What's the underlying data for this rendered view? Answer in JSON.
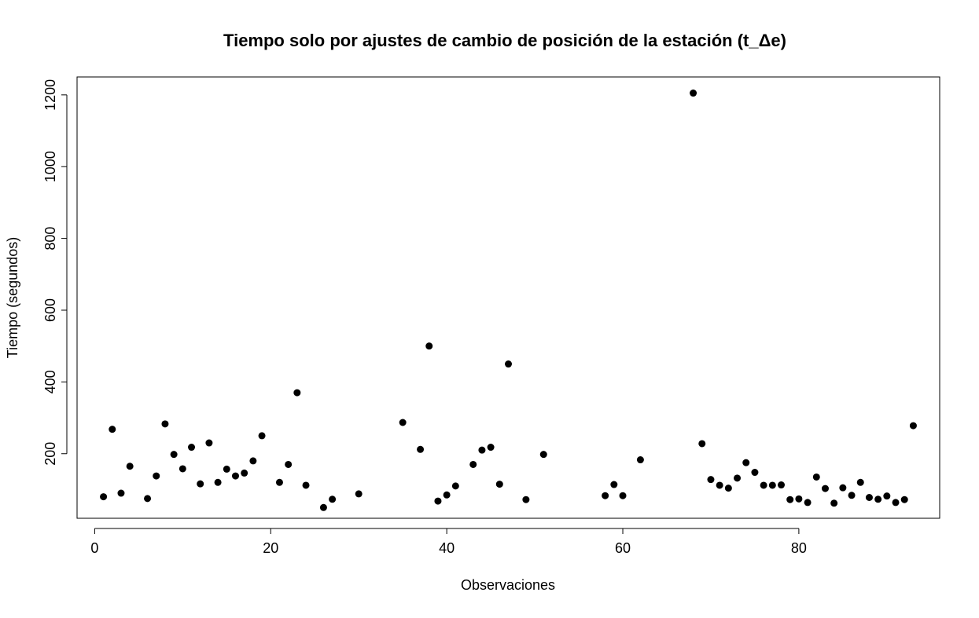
{
  "chart_data": {
    "type": "scatter",
    "title": "Tiempo solo por ajustes de cambio de posición de la estación (t_Δe)",
    "xlabel": "Observaciones",
    "ylabel": "Tiempo (segundos)",
    "xlim": [
      -2,
      96
    ],
    "ylim": [
      20,
      1250
    ],
    "x_ticks": [
      0,
      20,
      40,
      60,
      80
    ],
    "y_ticks": [
      200,
      400,
      600,
      800,
      1000,
      1200
    ],
    "grid": false,
    "marker_color": "#000000",
    "points": [
      [
        1,
        80
      ],
      [
        2,
        268
      ],
      [
        3,
        90
      ],
      [
        4,
        165
      ],
      [
        6,
        75
      ],
      [
        7,
        138
      ],
      [
        8,
        283
      ],
      [
        9,
        198
      ],
      [
        10,
        158
      ],
      [
        11,
        218
      ],
      [
        12,
        116
      ],
      [
        13,
        230
      ],
      [
        14,
        120
      ],
      [
        15,
        157
      ],
      [
        16,
        138
      ],
      [
        17,
        146
      ],
      [
        18,
        180
      ],
      [
        19,
        250
      ],
      [
        21,
        120
      ],
      [
        22,
        170
      ],
      [
        23,
        370
      ],
      [
        24,
        112
      ],
      [
        26,
        50
      ],
      [
        27,
        73
      ],
      [
        30,
        88
      ],
      [
        35,
        287
      ],
      [
        37,
        212
      ],
      [
        38,
        500
      ],
      [
        39,
        68
      ],
      [
        40,
        85
      ],
      [
        41,
        110
      ],
      [
        43,
        170
      ],
      [
        44,
        210
      ],
      [
        45,
        218
      ],
      [
        46,
        115
      ],
      [
        47,
        450
      ],
      [
        49,
        72
      ],
      [
        51,
        198
      ],
      [
        58,
        83
      ],
      [
        59,
        114
      ],
      [
        60,
        83
      ],
      [
        62,
        183
      ],
      [
        68,
        1205
      ],
      [
        69,
        228
      ],
      [
        70,
        128
      ],
      [
        71,
        112
      ],
      [
        72,
        104
      ],
      [
        73,
        132
      ],
      [
        74,
        175
      ],
      [
        75,
        148
      ],
      [
        76,
        112
      ],
      [
        77,
        112
      ],
      [
        78,
        113
      ],
      [
        79,
        72
      ],
      [
        80,
        74
      ],
      [
        81,
        64
      ],
      [
        82,
        135
      ],
      [
        83,
        103
      ],
      [
        84,
        62
      ],
      [
        85,
        105
      ],
      [
        86,
        84
      ],
      [
        87,
        120
      ],
      [
        88,
        78
      ],
      [
        89,
        73
      ],
      [
        90,
        82
      ],
      [
        91,
        64
      ],
      [
        92,
        72
      ],
      [
        93,
        278
      ]
    ]
  }
}
